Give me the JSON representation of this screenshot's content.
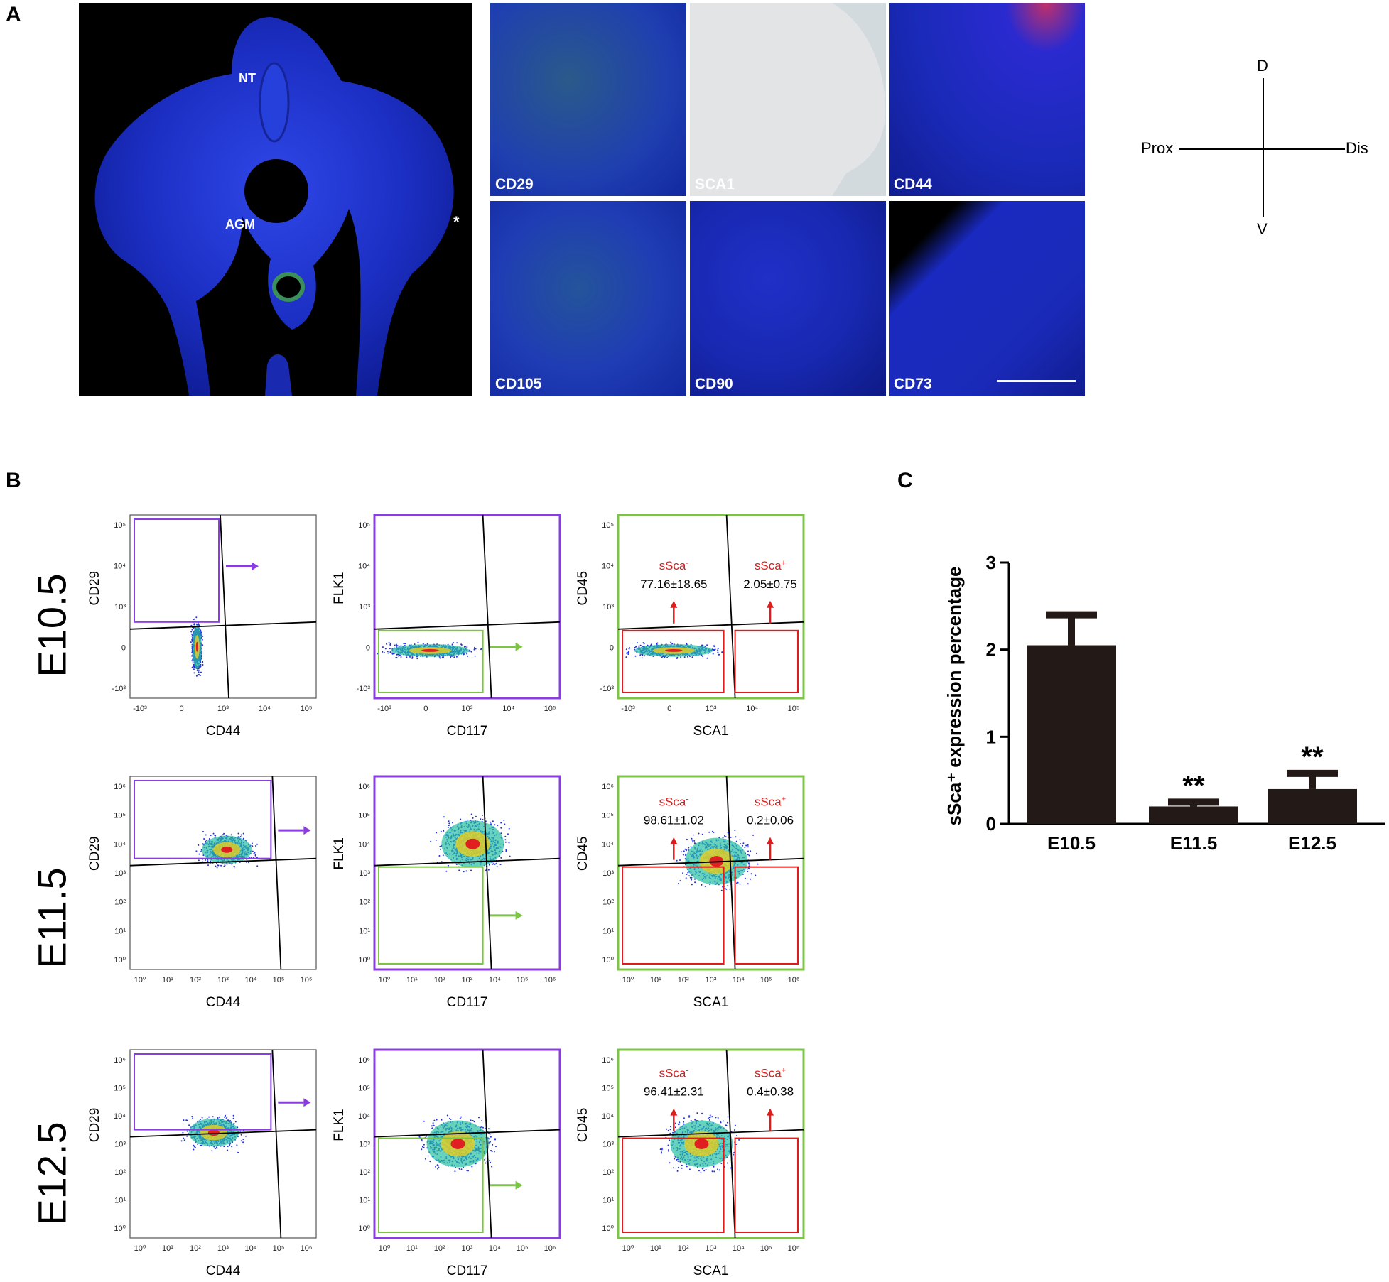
{
  "panels": {
    "a": "A",
    "b": "B",
    "c": "C"
  },
  "panel_a": {
    "overview_labels": [
      "NT",
      "AGM",
      "*"
    ],
    "markers": [
      "CD29",
      "SCA1",
      "CD44",
      "CD105",
      "CD90",
      "CD73"
    ],
    "axes": {
      "dorsal": "D",
      "ventral": "V",
      "proximal": "Prox",
      "distal": "Dis"
    }
  },
  "panel_b": {
    "stages": [
      "E10.5",
      "E11.5",
      "E12.5"
    ],
    "x_labels": [
      "CD44",
      "CD117",
      "SCA1"
    ],
    "y_labels": [
      "CD29",
      "FLK1",
      "CD45"
    ],
    "gate_neg": "sSca",
    "gate_pos": "sSca",
    "gate_neg_sup": "-",
    "gate_pos_sup": "+",
    "values": [
      {
        "neg": "77.16±18.65",
        "pos": "2.05±0.75"
      },
      {
        "neg": "98.61±1.02",
        "pos": "0.2±0.06"
      },
      {
        "neg": "96.41±2.31",
        "pos": "0.4±0.38"
      }
    ],
    "ticks_row1_x": [
      "-10³",
      "0",
      "10³",
      "10⁴",
      "10⁵"
    ],
    "ticks_row1_y": [
      "10⁵",
      "10⁴",
      "10³",
      "0",
      "-10³"
    ],
    "ticks_log_x": [
      "10⁰",
      "10¹",
      "10²",
      "10³",
      "10⁴",
      "10⁵",
      "10⁶"
    ],
    "ticks_log_y": [
      "10⁶",
      "10⁵",
      "10⁴",
      "10³",
      "10²",
      "10¹",
      "10⁰"
    ],
    "colors": {
      "purple": "#8a3ce0",
      "green": "#7cc443",
      "red": "#e01b1b"
    }
  },
  "chart_data": {
    "type": "bar",
    "categories": [
      "E10.5",
      "E11.5",
      "E12.5"
    ],
    "values": [
      2.05,
      0.2,
      0.4
    ],
    "errors": [
      0.35,
      0.05,
      0.18
    ],
    "significance": [
      "",
      "**",
      "**"
    ],
    "ylabel": "sSca⁺ expression percentage",
    "ylim": [
      0,
      3
    ],
    "yticks": [
      "0",
      "1",
      "2",
      "3"
    ],
    "bar_color": "#231a17"
  }
}
